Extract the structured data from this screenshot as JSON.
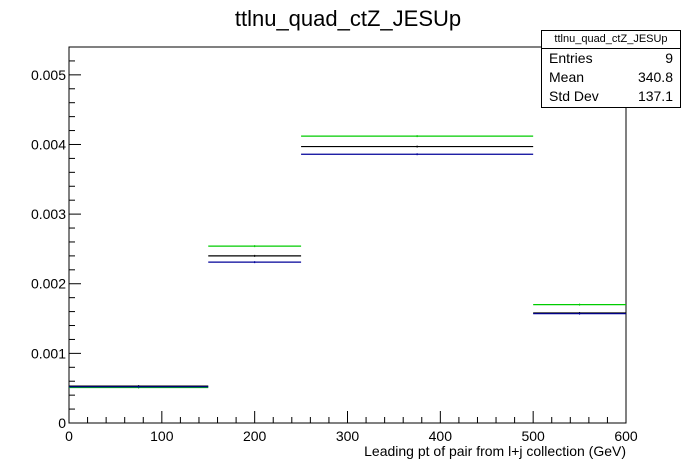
{
  "chart_data": {
    "type": "histogram",
    "title": "ttlnu_quad_ctZ_JESUp",
    "xlabel": "Leading pt of pair from l+j collection (GeV)",
    "ylabel": "",
    "xlim": [
      0,
      600
    ],
    "ylim": [
      0,
      0.0054
    ],
    "x_ticks": [
      "0",
      "100",
      "200",
      "300",
      "400",
      "500",
      "600"
    ],
    "y_ticks": [
      "0",
      "0.001",
      "0.002",
      "0.003",
      "0.004",
      "0.005"
    ],
    "bin_edges": [
      0,
      150,
      250,
      500,
      600
    ],
    "grid": false,
    "series": [
      {
        "color": "#00cc00",
        "values": [
          0.00051,
          0.00254,
          0.00412,
          0.0017
        ]
      },
      {
        "color": "#000000",
        "values": [
          0.00053,
          0.0024,
          0.00397,
          0.00158
        ]
      },
      {
        "color": "#000099",
        "values": [
          0.00052,
          0.00231,
          0.00386,
          0.00157
        ]
      }
    ]
  },
  "stats": {
    "title": "ttlnu_quad_ctZ_JESUp",
    "rows": [
      {
        "label": "Entries",
        "value": "9"
      },
      {
        "label": "Mean",
        "value": "340.8"
      },
      {
        "label": "Std Dev",
        "value": "137.1"
      }
    ]
  }
}
